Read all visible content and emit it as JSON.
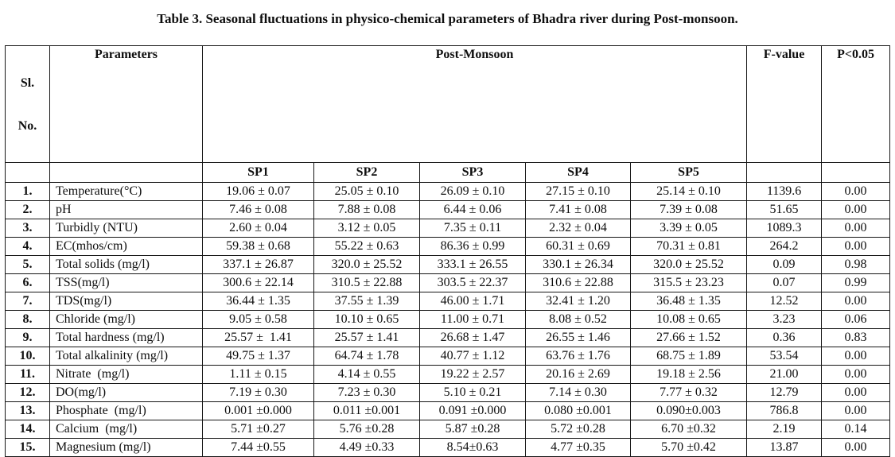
{
  "title": "Table 3. Seasonal fluctuations in physico-chemical parameters of Bhadra river during Post-monsoon.",
  "table": {
    "header": {
      "sl_line1": "Sl.",
      "sl_line2": "No.",
      "parameters": "Parameters",
      "group": "Post-Monsoon",
      "f_value": "F-value",
      "p_value": "P<0.05",
      "sites": [
        "SP1",
        "SP2",
        "SP3",
        "SP4",
        "SP5"
      ]
    },
    "rows": [
      {
        "cells": [
          "1.",
          "Temperature(°C)",
          "19.06 ± 0.07",
          "25.05 ± 0.10",
          "26.09 ± 0.10",
          "27.15 ± 0.10",
          "25.14 ± 0.10",
          "1139.6",
          "0.00"
        ]
      },
      {
        "cells": [
          "2.",
          "pH",
          "7.46 ± 0.08",
          "7.88 ± 0.08",
          "6.44 ± 0.06",
          "7.41 ± 0.08",
          "7.39 ± 0.08",
          "51.65",
          "0.00"
        ]
      },
      {
        "cells": [
          "3.",
          "Turbidly (NTU)",
          "2.60 ± 0.04",
          "3.12 ± 0.05",
          "7.35 ± 0.11",
          "2.32 ± 0.04",
          "3.39 ± 0.05",
          "1089.3",
          "0.00"
        ]
      },
      {
        "cells": [
          "4.",
          "EC(mhos/cm)",
          "59.38 ± 0.68",
          "55.22 ± 0.63",
          "86.36 ± 0.99",
          "60.31 ± 0.69",
          "70.31 ± 0.81",
          "264.2",
          "0.00"
        ]
      },
      {
        "cells": [
          "5.",
          "Total solids (mg/l)",
          "337.1 ± 26.87",
          "320.0 ± 25.52",
          "333.1 ± 26.55",
          "330.1 ± 26.34",
          "320.0 ± 25.52",
          "0.09",
          "0.98"
        ]
      },
      {
        "cells": [
          "6.",
          "TSS(mg/l)",
          "300.6 ± 22.14",
          "310.5 ± 22.88",
          "303.5 ± 22.37",
          "310.6 ± 22.88",
          "315.5 ± 23.23",
          "0.07",
          "0.99"
        ]
      },
      {
        "cells": [
          "7.",
          "TDS(mg/l)",
          "36.44 ± 1.35",
          "37.55 ± 1.39",
          "46.00 ± 1.71",
          "32.41 ± 1.20",
          "36.48 ± 1.35",
          "12.52",
          "0.00"
        ]
      },
      {
        "cells": [
          "8.",
          "Chloride (mg/l)",
          "9.05 ± 0.58",
          "10.10 ± 0.65",
          "11.00 ± 0.71",
          "8.08 ± 0.52",
          "10.08 ± 0.65",
          "3.23",
          "0.06"
        ]
      },
      {
        "cells": [
          "9.",
          "Total hardness (mg/l)",
          "25.57 ±  1.41",
          "25.57 ± 1.41",
          "26.68 ± 1.47",
          "26.55 ± 1.46",
          "27.66 ± 1.52",
          "0.36",
          "0.83"
        ]
      },
      {
        "cells": [
          "10.",
          "Total alkalinity (mg/l)",
          "49.75 ± 1.37",
          "64.74 ± 1.78",
          "40.77 ± 1.12",
          "63.76 ± 1.76",
          "68.75 ± 1.89",
          "53.54",
          "0.00"
        ]
      },
      {
        "cells": [
          "11.",
          "Nitrate  (mg/l)",
          "1.11 ± 0.15",
          "4.14 ± 0.55",
          "19.22 ± 2.57",
          "20.16 ± 2.69",
          "19.18 ± 2.56",
          "21.00",
          "0.00"
        ]
      },
      {
        "cells": [
          "12.",
          "DO(mg/l)",
          "7.19 ± 0.30",
          "7.23 ± 0.30",
          "5.10 ± 0.21",
          "7.14 ± 0.30",
          "7.77 ± 0.32",
          "12.79",
          "0.00"
        ]
      },
      {
        "cells": [
          "13.",
          "Phosphate  (mg/l)",
          "0.001 ±0.000",
          "0.011 ±0.001",
          "0.091 ±0.000",
          "0.080 ±0.001",
          "0.090±0.003",
          "786.8",
          "0.00"
        ]
      },
      {
        "cells": [
          "14.",
          "Calcium  (mg/l)",
          "5.71 ±0.27",
          "5.76 ±0.28",
          "5.87 ±0.28",
          "5.72 ±0.28",
          "6.70 ±0.32",
          "2.19",
          "0.14"
        ]
      },
      {
        "cells": [
          "15.",
          "Magnesium (mg/l)",
          "7.44 ±0.55",
          "4.49 ±0.33",
          "8.54±0.63",
          "4.77 ±0.35",
          "5.70 ±0.42",
          "13.87",
          "0.00"
        ]
      }
    ]
  }
}
